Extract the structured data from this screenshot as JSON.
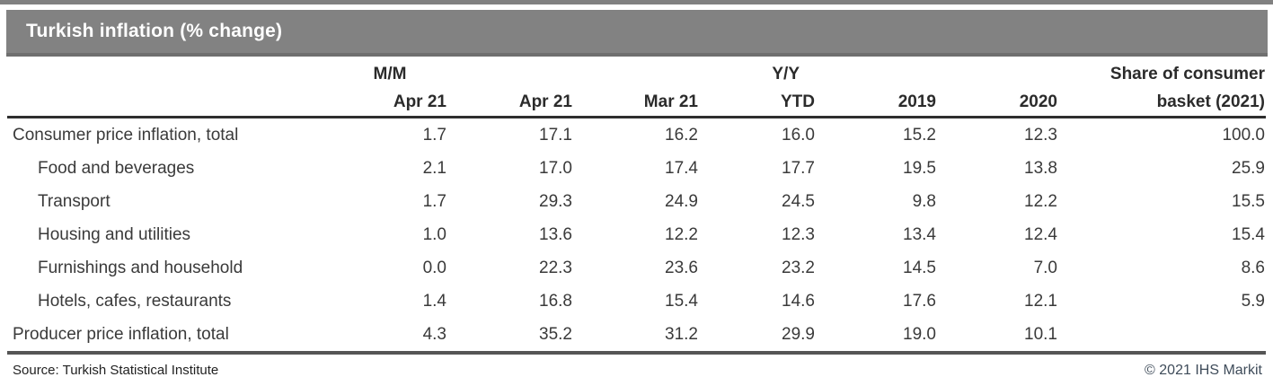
{
  "chart_data": {
    "type": "table",
    "title": "Turkish inflation (% change)",
    "column_groups": {
      "mm": "M/M",
      "yy": "Y/Y",
      "share_line1": "Share of consumer"
    },
    "columns": [
      "Apr 21",
      "Apr 21",
      "Mar 21",
      "YTD",
      "2019",
      "2020",
      "basket (2021)"
    ],
    "rows": [
      {
        "label": "Consumer price inflation, total",
        "indent": false,
        "values": [
          "1.7",
          "17.1",
          "16.2",
          "16.0",
          "15.2",
          "12.3",
          "100.0"
        ]
      },
      {
        "label": "Food and beverages",
        "indent": true,
        "values": [
          "2.1",
          "17.0",
          "17.4",
          "17.7",
          "19.5",
          "13.8",
          "25.9"
        ]
      },
      {
        "label": "Transport",
        "indent": true,
        "values": [
          "1.7",
          "29.3",
          "24.9",
          "24.5",
          "9.8",
          "12.2",
          "15.5"
        ]
      },
      {
        "label": "Housing and utilities",
        "indent": true,
        "values": [
          "1.0",
          "13.6",
          "12.2",
          "12.3",
          "13.4",
          "12.4",
          "15.4"
        ]
      },
      {
        "label": "Furnishings and household",
        "indent": true,
        "values": [
          "0.0",
          "22.3",
          "23.6",
          "23.2",
          "14.5",
          "7.0",
          "8.6"
        ]
      },
      {
        "label": "Hotels, cafes, restaurants",
        "indent": true,
        "values": [
          "1.4",
          "16.8",
          "15.4",
          "14.6",
          "17.6",
          "12.1",
          "5.9"
        ]
      },
      {
        "label": "Producer price inflation, total",
        "indent": false,
        "values": [
          "4.3",
          "35.2",
          "31.2",
          "29.9",
          "19.0",
          "10.1",
          ""
        ]
      }
    ],
    "layout_hints": {
      "numeric_alignment": "right",
      "grid": "off",
      "header_rule_color": "#2e2e2e",
      "bottom_rule_color": "#555555"
    }
  },
  "colors": {
    "title_bar_bg": "#828282",
    "title_text": "#ffffff",
    "body_text": "#3a3a3a",
    "header_text": "#2b2b2b",
    "copyright_text": "#3f4c5a"
  },
  "footer": {
    "source": "Source: Turkish Statistical Institute",
    "copyright": "© 2021 IHS Markit"
  }
}
